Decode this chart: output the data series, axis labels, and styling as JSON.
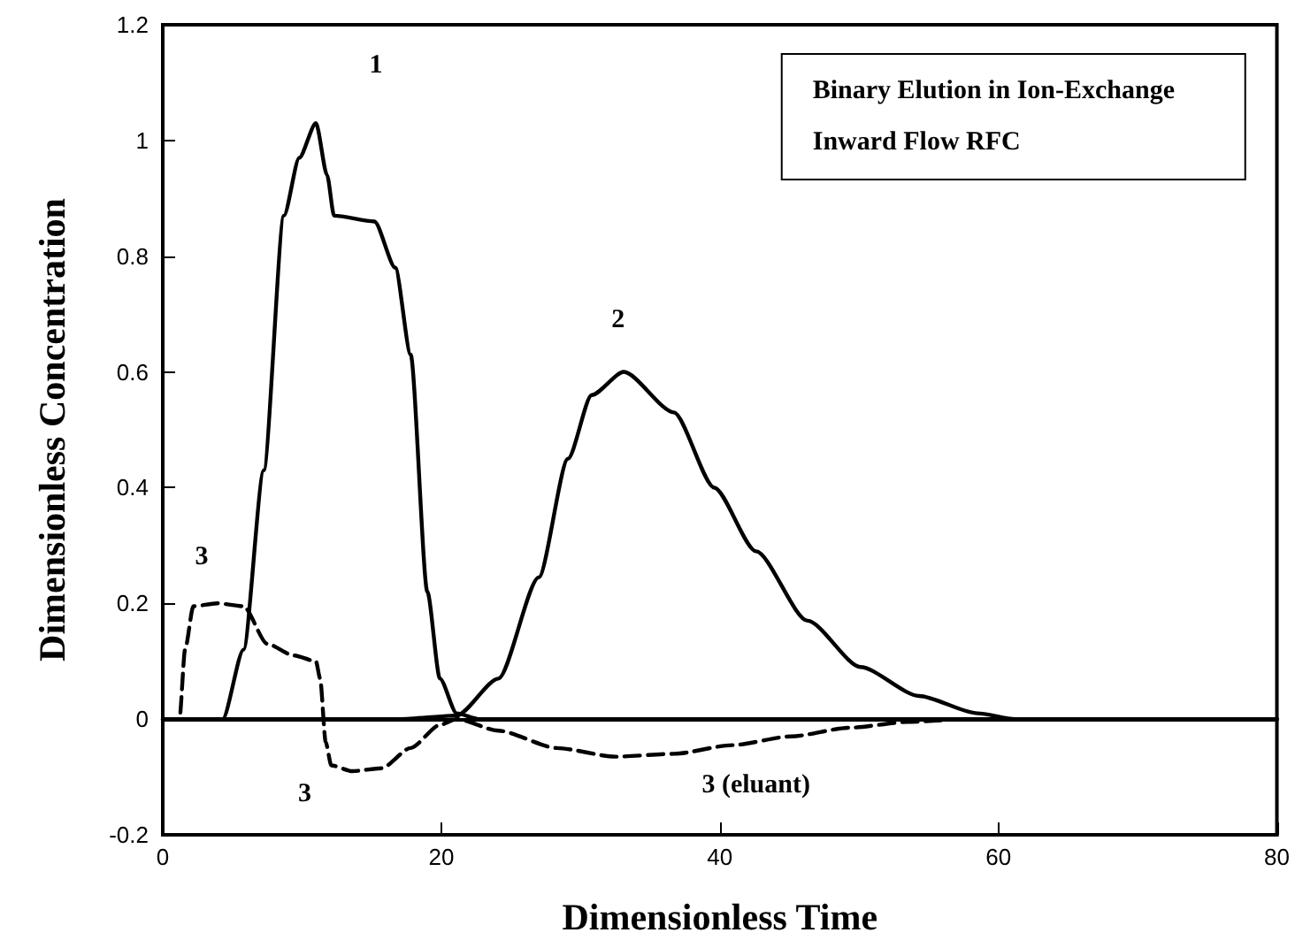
{
  "chart_data": {
    "type": "line",
    "title": "Binary Elution in Ion-Exchange",
    "subtitle": "Inward Flow RFC",
    "xlabel": "Dimensionless Time",
    "ylabel": "Dimensionless Concentration",
    "xlim": [
      0,
      80
    ],
    "xticks": [
      0,
      20,
      40,
      60,
      80
    ],
    "ylim": [
      -0.2,
      1.2
    ],
    "yticks": [
      -0.2,
      0,
      0.2,
      0.4,
      0.6,
      0.8,
      1,
      1.2
    ],
    "grid": false,
    "marker": "none",
    "ref_lines": [
      {
        "axis": "y",
        "value": 0,
        "color": "#000000",
        "line_style": "solid"
      }
    ],
    "annotations": [
      "1",
      "2",
      "3",
      "3",
      "3 (eluant)"
    ],
    "series": [
      {
        "color": "#000000",
        "line_style": "solid",
        "x": [
          0,
          4.3,
          5.8,
          7.25,
          8.7,
          9.8,
          11.0,
          11.8,
          12.3,
          15.2,
          16.7,
          17.8,
          19.0,
          19.9,
          21.1,
          22.7,
          80
        ],
        "values": [
          0,
          0,
          0.12,
          0.43,
          0.87,
          0.97,
          1.03,
          0.94,
          0.87,
          0.86,
          0.78,
          0.63,
          0.22,
          0.07,
          0.01,
          0,
          0
        ]
      },
      {
        "color": "#000000",
        "line_style": "solid",
        "x": [
          0,
          17,
          21.1,
          24.1,
          27.0,
          29.1,
          30.8,
          33.1,
          36.7,
          39.6,
          42.6,
          46.3,
          50.1,
          54.3,
          58.5,
          61.2,
          80
        ],
        "values": [
          0,
          0,
          0.006,
          0.07,
          0.245,
          0.45,
          0.56,
          0.6,
          0.53,
          0.4,
          0.29,
          0.17,
          0.09,
          0.04,
          0.01,
          0,
          0
        ]
      },
      {
        "color": "#000000",
        "line_style": "dashed",
        "x": [
          0,
          1.2,
          1.6,
          2.2,
          3.9,
          5.8,
          7.5,
          9.4,
          11.0,
          11.3,
          11.7,
          12.1,
          13.6,
          15.7,
          17.8,
          19.9,
          21.1,
          24.1,
          28.3,
          32.5,
          36.7,
          40.9,
          45.1,
          49.3,
          53.5,
          57.7,
          80
        ],
        "values": [
          0,
          0,
          0.12,
          0.195,
          0.2,
          0.195,
          0.13,
          0.11,
          0.1,
          0.07,
          -0.04,
          -0.08,
          -0.09,
          -0.085,
          -0.05,
          -0.01,
          0,
          -0.02,
          -0.05,
          -0.065,
          -0.06,
          -0.045,
          -0.03,
          -0.015,
          -0.005,
          0,
          0
        ]
      }
    ]
  }
}
